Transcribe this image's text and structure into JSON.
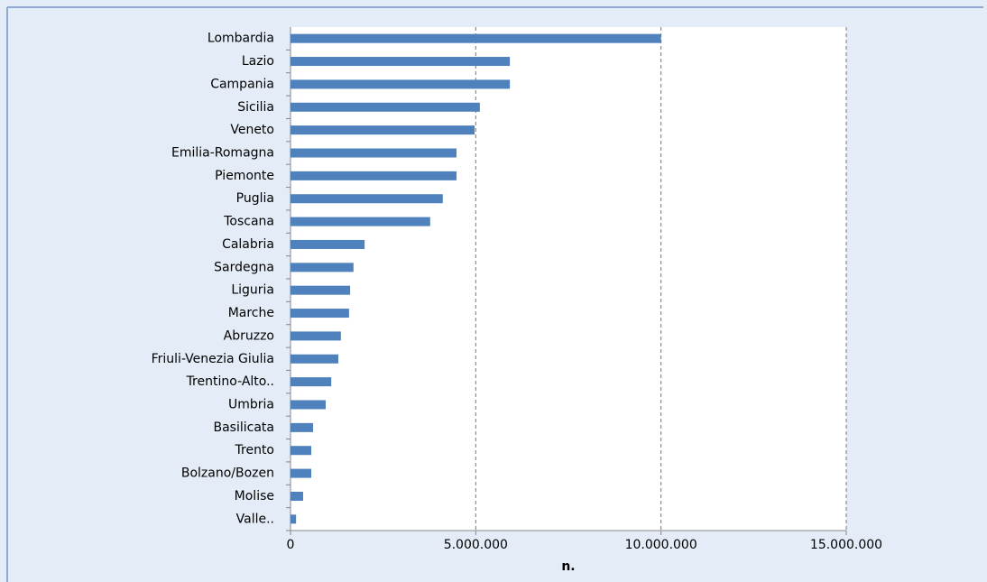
{
  "chart_data": {
    "type": "bar",
    "orientation": "horizontal",
    "categories": [
      "Lombardia",
      "Lazio",
      "Campania",
      "Sicilia",
      "Veneto",
      "Emilia-Romagna",
      "Piemonte",
      "Puglia",
      "Toscana",
      "Calabria",
      "Sardegna",
      "Liguria",
      "Marche",
      "Abruzzo",
      "Friuli-Venezia Giulia",
      "Trentino-Alto..",
      "Umbria",
      "Basilicata",
      "Trento",
      "Bolzano/Bozen",
      "Molise",
      "Valle.."
    ],
    "values": [
      10000000,
      5920000,
      5920000,
      5110000,
      4970000,
      4480000,
      4480000,
      4110000,
      3770000,
      2000000,
      1700000,
      1610000,
      1580000,
      1360000,
      1290000,
      1100000,
      950000,
      610000,
      560000,
      560000,
      340000,
      150000
    ],
    "color": "#4f81bd",
    "xlabel": "n.",
    "xlim": [
      0,
      15000000
    ],
    "xticks": [
      0,
      {
        "value": 5000000,
        "label": "5.000.000"
      },
      {
        "value": 10000000,
        "label": "10.000.000"
      },
      {
        "value": 15000000,
        "label": "15.000.000"
      }
    ],
    "grid": true
  }
}
